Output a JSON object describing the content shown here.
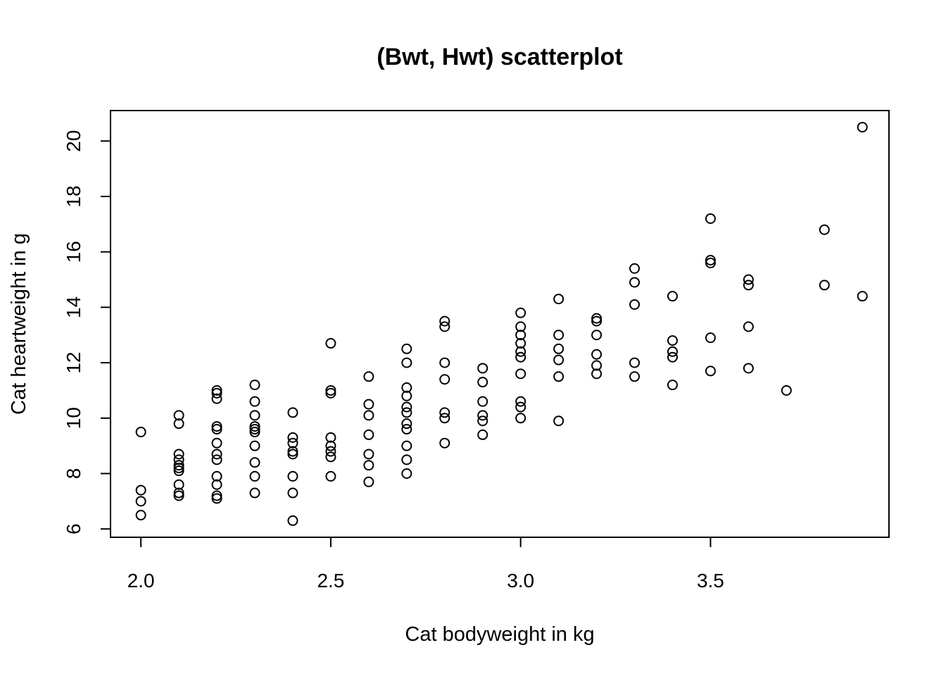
{
  "chart_data": {
    "type": "scatter",
    "title": "(Bwt, Hwt) scatterplot",
    "xlabel": "Cat bodyweight in kg",
    "ylabel": "Cat heartweight in g",
    "xlim": [
      1.92,
      3.97
    ],
    "ylim": [
      5.7,
      21.1
    ],
    "xticks": [
      "2.0",
      "2.5",
      "3.0",
      "3.5"
    ],
    "yticks": [
      "6",
      "8",
      "10",
      "12",
      "14",
      "16",
      "18",
      "20"
    ],
    "grid": false,
    "marker": "open-circle",
    "points": [
      [
        2.0,
        9.5
      ],
      [
        2.0,
        7.4
      ],
      [
        2.0,
        7.0
      ],
      [
        2.0,
        6.5
      ],
      [
        2.1,
        10.1
      ],
      [
        2.1,
        9.8
      ],
      [
        2.1,
        8.7
      ],
      [
        2.1,
        8.5
      ],
      [
        2.1,
        8.3
      ],
      [
        2.1,
        8.2
      ],
      [
        2.1,
        8.1
      ],
      [
        2.1,
        7.6
      ],
      [
        2.1,
        7.3
      ],
      [
        2.1,
        7.2
      ],
      [
        2.2,
        11.0
      ],
      [
        2.2,
        10.9
      ],
      [
        2.2,
        10.7
      ],
      [
        2.2,
        9.7
      ],
      [
        2.2,
        9.6
      ],
      [
        2.2,
        9.1
      ],
      [
        2.2,
        8.7
      ],
      [
        2.2,
        8.5
      ],
      [
        2.2,
        7.9
      ],
      [
        2.2,
        7.6
      ],
      [
        2.2,
        7.2
      ],
      [
        2.2,
        7.1
      ],
      [
        2.3,
        11.2
      ],
      [
        2.3,
        10.6
      ],
      [
        2.3,
        10.1
      ],
      [
        2.3,
        9.7
      ],
      [
        2.3,
        9.6
      ],
      [
        2.3,
        9.5
      ],
      [
        2.3,
        9.0
      ],
      [
        2.3,
        8.4
      ],
      [
        2.3,
        7.9
      ],
      [
        2.3,
        7.3
      ],
      [
        2.4,
        10.2
      ],
      [
        2.4,
        9.3
      ],
      [
        2.4,
        9.1
      ],
      [
        2.4,
        8.8
      ],
      [
        2.4,
        8.7
      ],
      [
        2.4,
        7.9
      ],
      [
        2.4,
        7.3
      ],
      [
        2.4,
        6.3
      ],
      [
        2.5,
        12.7
      ],
      [
        2.5,
        11.0
      ],
      [
        2.5,
        10.9
      ],
      [
        2.5,
        9.3
      ],
      [
        2.5,
        9.0
      ],
      [
        2.5,
        8.8
      ],
      [
        2.5,
        8.6
      ],
      [
        2.5,
        7.9
      ],
      [
        2.6,
        11.5
      ],
      [
        2.6,
        10.5
      ],
      [
        2.6,
        10.1
      ],
      [
        2.6,
        9.4
      ],
      [
        2.6,
        8.7
      ],
      [
        2.6,
        8.3
      ],
      [
        2.6,
        7.7
      ],
      [
        2.7,
        12.5
      ],
      [
        2.7,
        12.0
      ],
      [
        2.7,
        11.1
      ],
      [
        2.7,
        10.8
      ],
      [
        2.7,
        10.4
      ],
      [
        2.7,
        10.2
      ],
      [
        2.7,
        9.8
      ],
      [
        2.7,
        9.6
      ],
      [
        2.7,
        9.0
      ],
      [
        2.7,
        8.5
      ],
      [
        2.7,
        8.0
      ],
      [
        2.8,
        13.5
      ],
      [
        2.8,
        13.3
      ],
      [
        2.8,
        12.0
      ],
      [
        2.8,
        11.4
      ],
      [
        2.8,
        10.2
      ],
      [
        2.8,
        10.0
      ],
      [
        2.8,
        9.1
      ],
      [
        2.9,
        11.8
      ],
      [
        2.9,
        11.3
      ],
      [
        2.9,
        10.6
      ],
      [
        2.9,
        10.1
      ],
      [
        2.9,
        9.9
      ],
      [
        2.9,
        9.4
      ],
      [
        3.0,
        13.8
      ],
      [
        3.0,
        13.3
      ],
      [
        3.0,
        13.0
      ],
      [
        3.0,
        12.7
      ],
      [
        3.0,
        12.4
      ],
      [
        3.0,
        12.2
      ],
      [
        3.0,
        11.6
      ],
      [
        3.0,
        10.6
      ],
      [
        3.0,
        10.4
      ],
      [
        3.0,
        10.0
      ],
      [
        3.1,
        14.3
      ],
      [
        3.1,
        13.0
      ],
      [
        3.1,
        12.5
      ],
      [
        3.1,
        12.1
      ],
      [
        3.1,
        11.5
      ],
      [
        3.1,
        9.9
      ],
      [
        3.2,
        13.6
      ],
      [
        3.2,
        13.5
      ],
      [
        3.2,
        13.0
      ],
      [
        3.2,
        12.3
      ],
      [
        3.2,
        11.9
      ],
      [
        3.2,
        11.6
      ],
      [
        3.3,
        15.4
      ],
      [
        3.3,
        14.9
      ],
      [
        3.3,
        14.1
      ],
      [
        3.3,
        12.0
      ],
      [
        3.3,
        11.5
      ],
      [
        3.4,
        14.4
      ],
      [
        3.4,
        12.8
      ],
      [
        3.4,
        12.4
      ],
      [
        3.4,
        12.2
      ],
      [
        3.4,
        11.2
      ],
      [
        3.5,
        17.2
      ],
      [
        3.5,
        15.7
      ],
      [
        3.5,
        15.6
      ],
      [
        3.5,
        12.9
      ],
      [
        3.5,
        11.7
      ],
      [
        3.6,
        15.0
      ],
      [
        3.6,
        14.8
      ],
      [
        3.6,
        13.3
      ],
      [
        3.6,
        11.8
      ],
      [
        3.7,
        11.0
      ],
      [
        3.8,
        16.8
      ],
      [
        3.8,
        14.8
      ],
      [
        3.9,
        20.5
      ],
      [
        3.9,
        14.4
      ]
    ]
  }
}
